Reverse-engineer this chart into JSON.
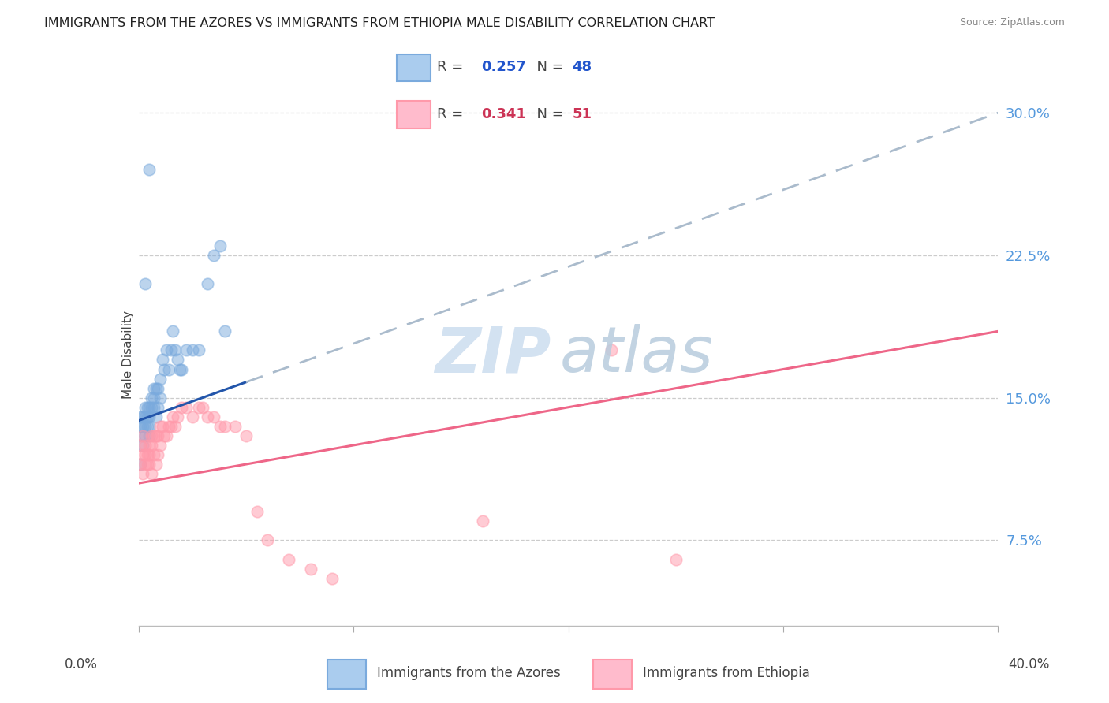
{
  "title": "IMMIGRANTS FROM THE AZORES VS IMMIGRANTS FROM ETHIOPIA MALE DISABILITY CORRELATION CHART",
  "source": "Source: ZipAtlas.com",
  "ylabel": "Male Disability",
  "xlim": [
    0.0,
    0.4
  ],
  "ylim": [
    0.03,
    0.315
  ],
  "watermark_top": "ZIP",
  "watermark_bot": "atlas",
  "azores_color": "#7aaadd",
  "ethiopia_color": "#ff99aa",
  "azores_x": [
    0.001,
    0.001,
    0.002,
    0.002,
    0.002,
    0.003,
    0.003,
    0.003,
    0.003,
    0.004,
    0.004,
    0.004,
    0.005,
    0.005,
    0.005,
    0.005,
    0.006,
    0.006,
    0.007,
    0.007,
    0.007,
    0.008,
    0.008,
    0.009,
    0.009,
    0.01,
    0.01,
    0.011,
    0.012,
    0.013,
    0.014,
    0.015,
    0.016,
    0.017,
    0.018,
    0.019,
    0.02,
    0.022,
    0.025,
    0.028,
    0.032,
    0.035,
    0.038,
    0.04,
    0.001,
    0.002,
    0.003,
    0.005
  ],
  "azores_y": [
    0.14,
    0.135,
    0.14,
    0.135,
    0.125,
    0.145,
    0.14,
    0.135,
    0.13,
    0.14,
    0.145,
    0.135,
    0.145,
    0.14,
    0.135,
    0.13,
    0.15,
    0.145,
    0.155,
    0.15,
    0.145,
    0.155,
    0.14,
    0.155,
    0.145,
    0.16,
    0.15,
    0.17,
    0.165,
    0.175,
    0.165,
    0.175,
    0.185,
    0.175,
    0.17,
    0.165,
    0.165,
    0.175,
    0.175,
    0.175,
    0.21,
    0.225,
    0.23,
    0.185,
    0.115,
    0.13,
    0.21,
    0.27
  ],
  "ethiopia_x": [
    0.001,
    0.001,
    0.002,
    0.002,
    0.002,
    0.003,
    0.003,
    0.003,
    0.004,
    0.004,
    0.005,
    0.005,
    0.005,
    0.006,
    0.006,
    0.006,
    0.007,
    0.007,
    0.008,
    0.008,
    0.009,
    0.009,
    0.01,
    0.01,
    0.011,
    0.012,
    0.013,
    0.014,
    0.015,
    0.016,
    0.017,
    0.018,
    0.02,
    0.022,
    0.025,
    0.028,
    0.03,
    0.032,
    0.035,
    0.038,
    0.04,
    0.045,
    0.05,
    0.055,
    0.06,
    0.07,
    0.08,
    0.09,
    0.16,
    0.22,
    0.25
  ],
  "ethiopia_y": [
    0.125,
    0.115,
    0.13,
    0.12,
    0.11,
    0.125,
    0.12,
    0.115,
    0.12,
    0.115,
    0.125,
    0.12,
    0.115,
    0.13,
    0.125,
    0.11,
    0.13,
    0.12,
    0.13,
    0.115,
    0.13,
    0.12,
    0.135,
    0.125,
    0.135,
    0.13,
    0.13,
    0.135,
    0.135,
    0.14,
    0.135,
    0.14,
    0.145,
    0.145,
    0.14,
    0.145,
    0.145,
    0.14,
    0.14,
    0.135,
    0.135,
    0.135,
    0.13,
    0.09,
    0.075,
    0.065,
    0.06,
    0.055,
    0.085,
    0.175,
    0.065
  ],
  "azores_R": 0.257,
  "azores_N": 48,
  "ethiopia_R": 0.341,
  "ethiopia_N": 51,
  "blue_solid_color": "#2255aa",
  "pink_solid_color": "#ee6688",
  "dashed_color": "#aabbcc",
  "background_color": "#ffffff",
  "grid_color": "#cccccc",
  "title_fontsize": 11.5,
  "axis_label_fontsize": 11,
  "tick_fontsize": 13,
  "source_fontsize": 9,
  "watermark_color": "#ccddef",
  "legend_fontsize": 13,
  "ytick_color": "#5599dd",
  "yticks": [
    0.075,
    0.15,
    0.225,
    0.3
  ],
  "ytick_labels": [
    "7.5%",
    "15.0%",
    "22.5%",
    "30.0%"
  ]
}
